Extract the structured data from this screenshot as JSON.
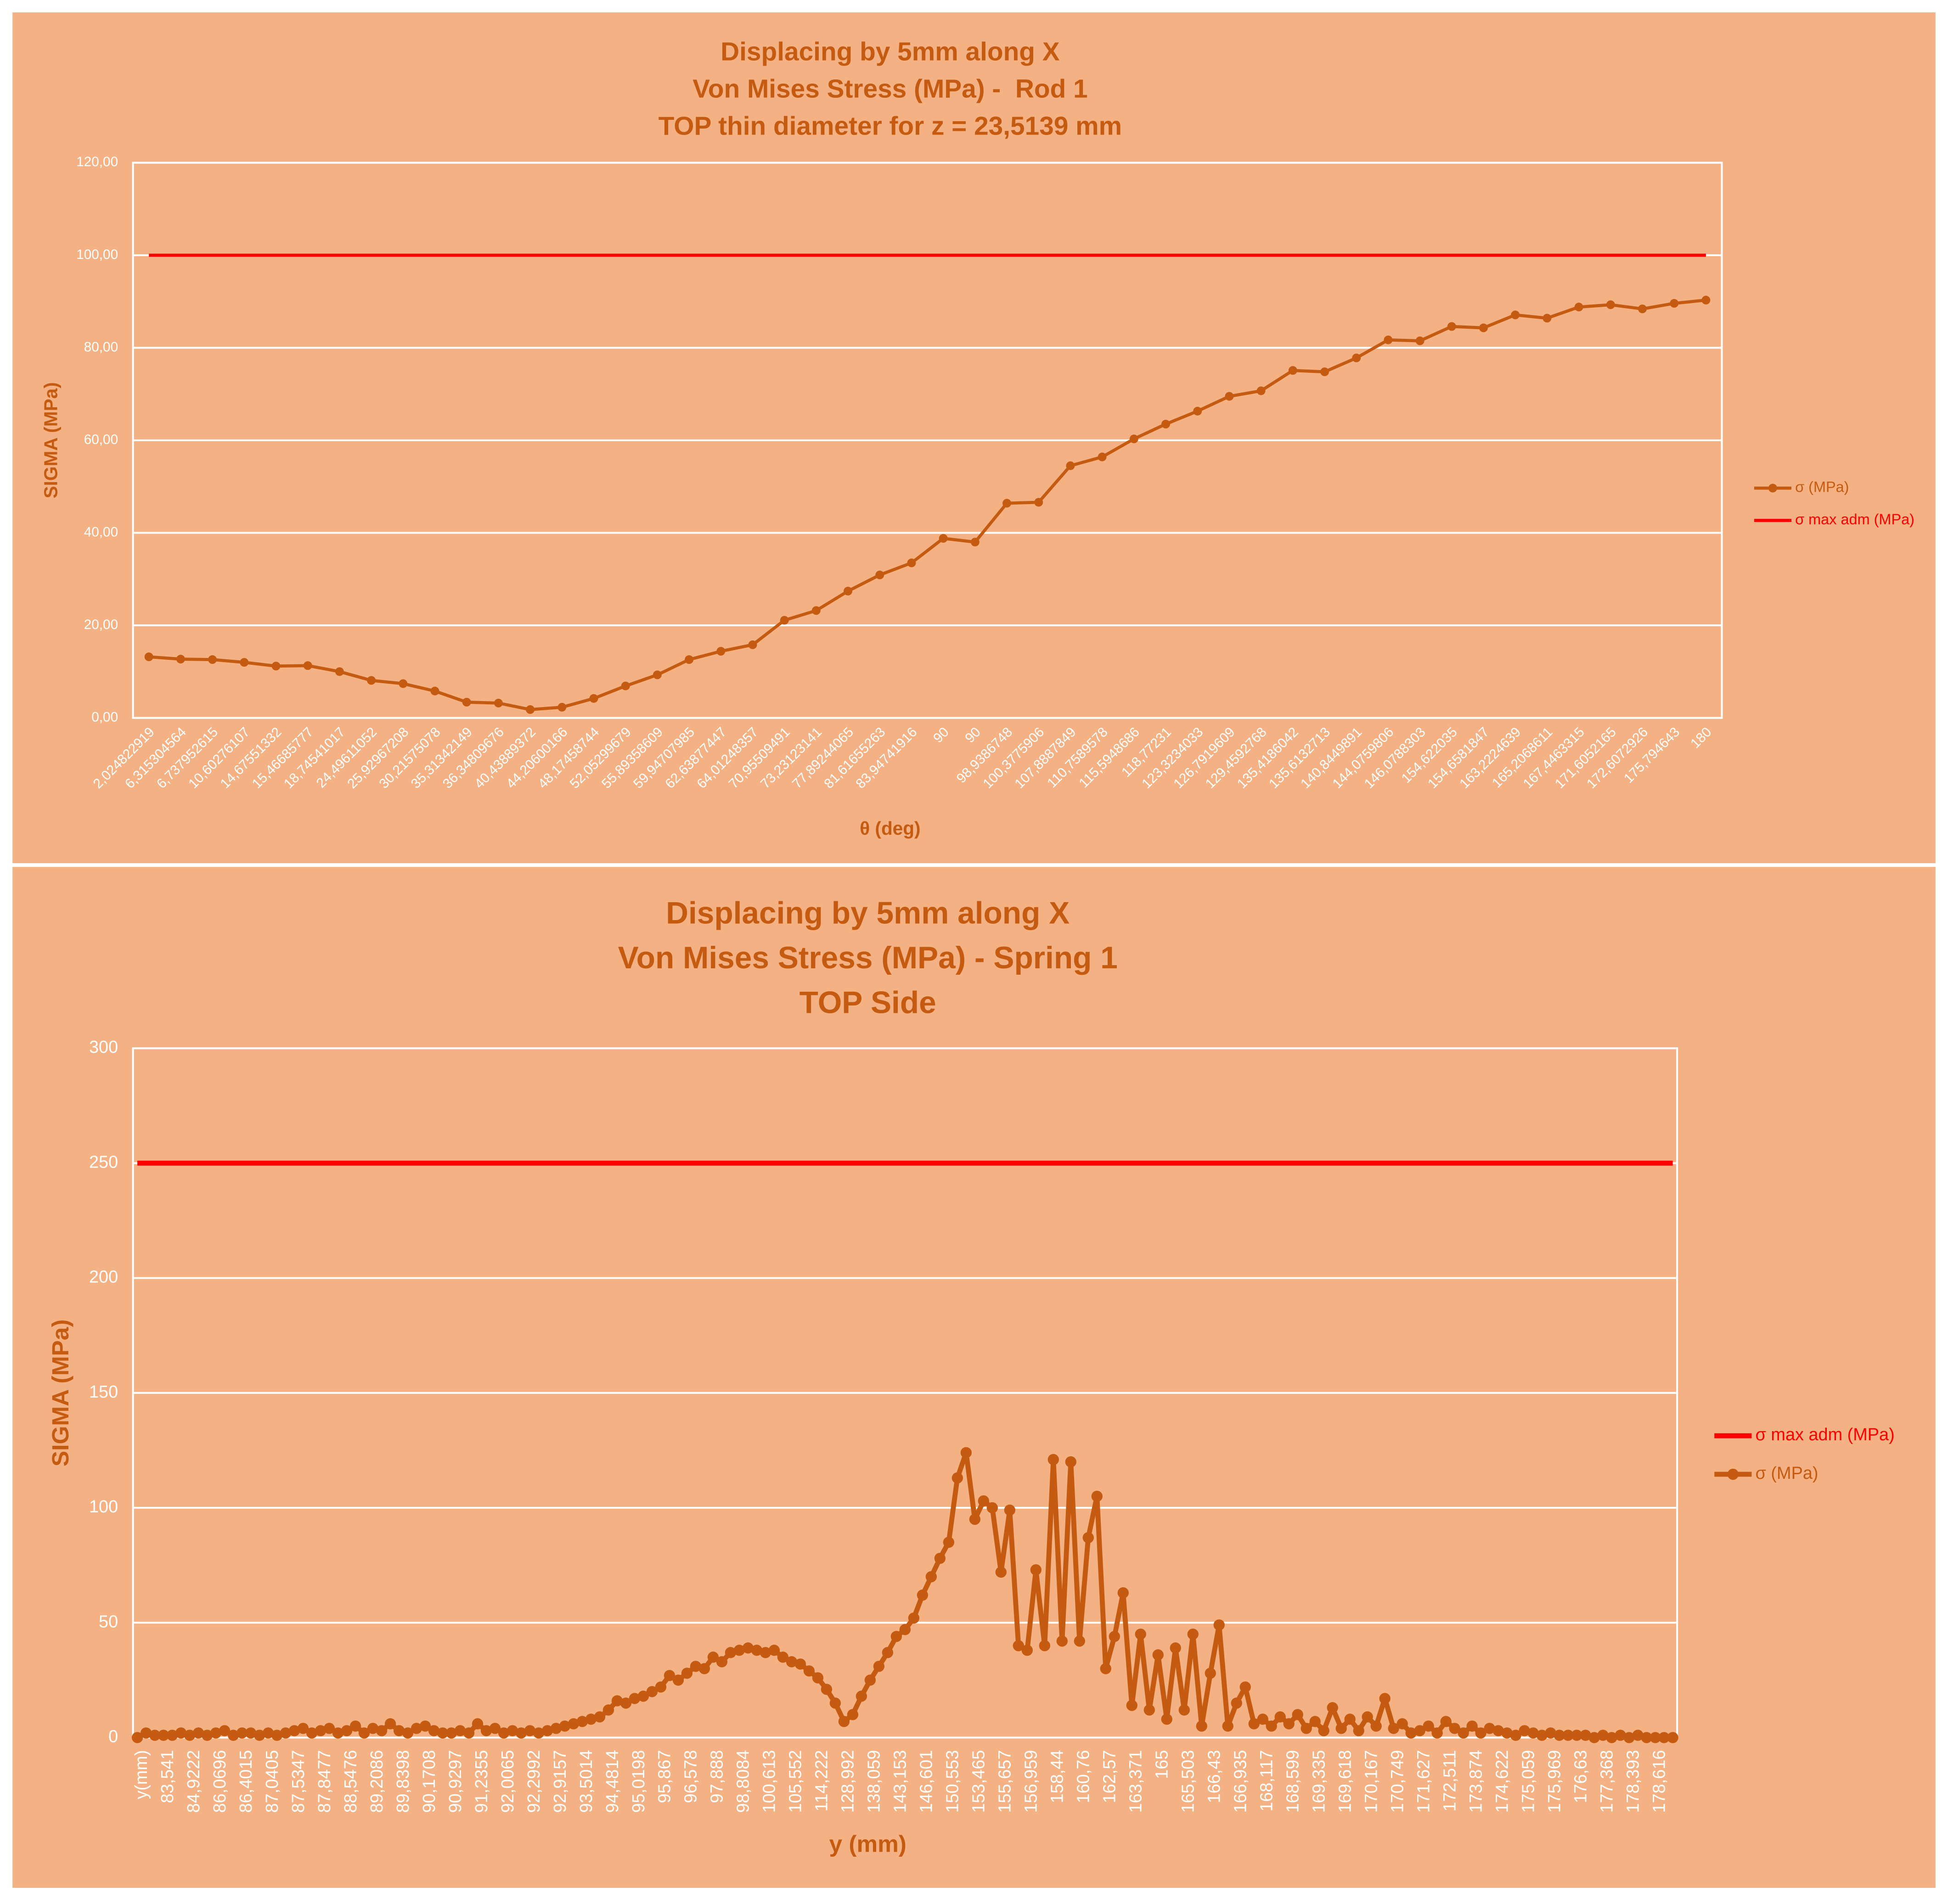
{
  "chart_data": [
    {
      "type": "line",
      "title": [
        "Displacing by 5mm along X",
        "Von Mises Stress (MPa) -  Rod 1",
        "TOP thin diameter for z = 23,5139 mm"
      ],
      "x_label": "θ (deg)",
      "y_label": "SIGMA (MPa)",
      "categories": [
        "2,024822919",
        "6,315304564",
        "6,737952615",
        "10,60276107",
        "14,67551332",
        "15,46685777",
        "18,74541017",
        "24,49611052",
        "25,92967208",
        "30,21575078",
        "35,31342149",
        "36,34809676",
        "40,43889372",
        "44,20600166",
        "48,17458744",
        "52,05299679",
        "55,89358609",
        "59,94707985",
        "62,63877447",
        "64,01248357",
        "70,95509491",
        "73,23123141",
        "77,89244065",
        "81,61655263",
        "83,94741916",
        "90",
        "90",
        "98,9386748",
        "100,3775906",
        "107,8887849",
        "110,7589578",
        "115,5948686",
        "118,77231",
        "123,3234033",
        "126,7919609",
        "129,4592768",
        "135,4186042",
        "135,6132713",
        "140,8449891",
        "144,0759806",
        "146,0788303",
        "154,622035",
        "154,6581847",
        "163,2224639",
        "165,2068611",
        "167,4463315",
        "171,6052165",
        "172,6072926",
        "175,794643",
        "180"
      ],
      "series": [
        {
          "name": "σ (MPa)",
          "color": "#c55a11",
          "markers": true,
          "values": [
            13.2,
            12.7,
            12.6,
            12.0,
            11.2,
            11.3,
            10.0,
            8.1,
            7.4,
            5.8,
            3.4,
            3.2,
            1.8,
            2.3,
            4.2,
            6.9,
            9.3,
            12.6,
            14.4,
            15.8,
            21.1,
            23.2,
            27.4,
            30.9,
            33.5,
            38.8,
            38.0,
            46.4,
            46.6,
            54.5,
            56.4,
            60.3,
            63.5,
            66.3,
            69.5,
            70.7,
            75.1,
            74.8,
            77.8,
            81.7,
            81.5,
            84.6,
            84.3,
            87.1,
            86.4,
            88.8,
            89.3,
            88.4,
            89.6,
            90.3
          ]
        },
        {
          "name": "σ max adm (MPa)",
          "color": "#ff0000",
          "markers": false,
          "values": [
            100,
            100,
            100,
            100,
            100,
            100,
            100,
            100,
            100,
            100,
            100,
            100,
            100,
            100,
            100,
            100,
            100,
            100,
            100,
            100,
            100,
            100,
            100,
            100,
            100,
            100,
            100,
            100,
            100,
            100,
            100,
            100,
            100,
            100,
            100,
            100,
            100,
            100,
            100,
            100,
            100,
            100,
            100,
            100,
            100,
            100,
            100,
            100,
            100,
            100
          ]
        }
      ],
      "ylim": [
        0,
        120
      ],
      "yticks": [
        {
          "value": 0,
          "label": "0,00"
        },
        {
          "value": 20,
          "label": "20,00"
        },
        {
          "value": 40,
          "label": "40,00"
        },
        {
          "value": 60,
          "label": "60,00"
        },
        {
          "value": 80,
          "label": "80,00"
        },
        {
          "value": 100,
          "label": "100,00"
        },
        {
          "value": 120,
          "label": "120,00"
        }
      ],
      "grid": true,
      "legend": "right"
    },
    {
      "type": "line",
      "title": [
        "Displacing by 5mm along X",
        "Von Mises Stress (MPa) - Spring 1",
        "TOP Side"
      ],
      "x_label": "y (mm)",
      "y_label": "SIGMA (MPa)",
      "categories": [
        "y(mm)",
        null,
        null,
        "83,541",
        null,
        null,
        "84,9222",
        null,
        null,
        "86,0696",
        null,
        null,
        "86,4015",
        null,
        null,
        "87,0405",
        null,
        null,
        "87,5347",
        null,
        null,
        "87,8477",
        null,
        null,
        "88,5476",
        null,
        null,
        "89,2086",
        null,
        null,
        "89,8398",
        null,
        null,
        "90,1708",
        null,
        null,
        "90,9297",
        null,
        null,
        "91,2355",
        null,
        null,
        "92,0065",
        null,
        null,
        "92,2992",
        null,
        null,
        "92,9157",
        null,
        null,
        "93,5014",
        null,
        null,
        "94,4814",
        null,
        null,
        "95,0198",
        null,
        null,
        "95,867",
        null,
        null,
        "96,578",
        null,
        null,
        "97,888",
        null,
        null,
        "98,8084",
        null,
        null,
        "100,613",
        null,
        null,
        "105,552",
        null,
        null,
        "114,222",
        null,
        null,
        "128,992",
        null,
        null,
        "138,059",
        null,
        null,
        "143,153",
        null,
        null,
        "146,601",
        null,
        null,
        "150,553",
        null,
        null,
        "153,465",
        null,
        null,
        "155,657",
        null,
        null,
        "156,959",
        null,
        null,
        "158,44",
        null,
        null,
        "160,76",
        null,
        null,
        "162,57",
        null,
        null,
        "163,371",
        null,
        null,
        "165",
        null,
        null,
        "165,503",
        null,
        null,
        "166,43",
        null,
        null,
        "166,935",
        null,
        null,
        "168,117",
        null,
        null,
        "168,599",
        null,
        null,
        "169,335",
        null,
        null,
        "169,618",
        null,
        null,
        "170,167",
        null,
        null,
        "170,749",
        null,
        null,
        "171,627",
        null,
        null,
        "172,511",
        null,
        null,
        "173,874",
        null,
        null,
        "174,622",
        null,
        null,
        "175,059",
        null,
        null,
        "175,969",
        null,
        null,
        "176,63",
        null,
        null,
        "177,368",
        null,
        null,
        "178,393",
        null,
        null,
        "178,616",
        null,
        null
      ],
      "series": [
        {
          "name": "σ max adm (MPa)",
          "color": "#ff0000",
          "markers": false,
          "values": [
            250,
            250,
            250,
            250,
            250,
            250,
            250,
            250,
            250,
            250,
            250,
            250,
            250,
            250,
            250,
            250,
            250,
            250,
            250,
            250,
            250,
            250,
            250,
            250,
            250,
            250,
            250,
            250,
            250,
            250,
            250,
            250,
            250,
            250,
            250,
            250,
            250,
            250,
            250,
            250,
            250,
            250,
            250,
            250,
            250,
            250,
            250,
            250,
            250,
            250,
            250,
            250,
            250,
            250,
            250,
            250,
            250,
            250,
            250,
            250,
            250,
            250,
            250,
            250,
            250,
            250,
            250,
            250,
            250,
            250,
            250,
            250,
            250,
            250,
            250,
            250,
            250,
            250,
            250,
            250,
            250,
            250,
            250,
            250,
            250,
            250,
            250,
            250,
            250,
            250,
            250,
            250,
            250,
            250,
            250,
            250,
            250,
            250,
            250,
            250,
            250,
            250,
            250,
            250,
            250,
            250,
            250,
            250,
            250,
            250,
            250,
            250,
            250,
            250,
            250,
            250,
            250,
            250,
            250,
            250,
            250,
            250,
            250,
            250,
            250,
            250,
            250,
            250,
            250,
            250,
            250,
            250,
            250,
            250,
            250,
            250,
            250,
            250,
            250,
            250,
            250,
            250,
            250,
            250,
            250,
            250,
            250,
            250,
            250,
            250,
            250,
            250,
            250,
            250,
            250,
            250,
            250,
            250,
            250,
            250,
            250,
            250,
            250,
            250,
            250,
            250,
            250,
            250,
            250,
            250,
            250,
            250,
            250,
            250,
            250,
            250,
            250
          ]
        },
        {
          "name": "σ (MPa)",
          "color": "#c55a11",
          "markers": true,
          "values": [
            0,
            2,
            1,
            1,
            1,
            2,
            1,
            2,
            1,
            2,
            3,
            1,
            2,
            2,
            1,
            2,
            1,
            2,
            3,
            4,
            2,
            3,
            4,
            2,
            3,
            5,
            2,
            4,
            3,
            6,
            3,
            2,
            4,
            5,
            3,
            2,
            2,
            3,
            2,
            6,
            3,
            4,
            2,
            3,
            2,
            3,
            2,
            3,
            4,
            5,
            6,
            7,
            8,
            9,
            12,
            16,
            15,
            17,
            18,
            20,
            22,
            27,
            25,
            28,
            31,
            30,
            35,
            33,
            37,
            38,
            39,
            38,
            37,
            38,
            35,
            33,
            32,
            29,
            26,
            21,
            15,
            7,
            10,
            18,
            25,
            31,
            37,
            44,
            47,
            52,
            62,
            70,
            78,
            85,
            113,
            124,
            95,
            103,
            100,
            72,
            99,
            40,
            38,
            73,
            40,
            121,
            42,
            120,
            42,
            87,
            105,
            30,
            44,
            63,
            14,
            45,
            12,
            36,
            8,
            39,
            12,
            45,
            5,
            28,
            49,
            5,
            15,
            22,
            6,
            8,
            5,
            9,
            6,
            10,
            4,
            7,
            3,
            13,
            4,
            8,
            3,
            9,
            5,
            17,
            4,
            6,
            2,
            3,
            5,
            2,
            7,
            4,
            2,
            5,
            2,
            4,
            3,
            2,
            1,
            3,
            2,
            1,
            2,
            1,
            1,
            1,
            1,
            0,
            1,
            0,
            1,
            0,
            1,
            0,
            0,
            0,
            0
          ]
        }
      ],
      "ylim": [
        0,
        300
      ],
      "yticks": [
        0,
        50,
        100,
        150,
        200,
        250,
        300
      ],
      "grid": true,
      "legend": "right"
    }
  ]
}
